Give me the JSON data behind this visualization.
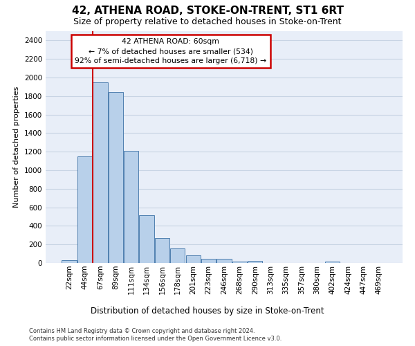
{
  "title": "42, ATHENA ROAD, STOKE-ON-TRENT, ST1 6RT",
  "subtitle": "Size of property relative to detached houses in Stoke-on-Trent",
  "xlabel_bottom": "Distribution of detached houses by size in Stoke-on-Trent",
  "ylabel": "Number of detached properties",
  "footer_line1": "Contains HM Land Registry data © Crown copyright and database right 2024.",
  "footer_line2": "Contains public sector information licensed under the Open Government Licence v3.0.",
  "bin_labels": [
    "22sqm",
    "44sqm",
    "67sqm",
    "89sqm",
    "111sqm",
    "134sqm",
    "156sqm",
    "178sqm",
    "201sqm",
    "223sqm",
    "246sqm",
    "268sqm",
    "290sqm",
    "313sqm",
    "335sqm",
    "357sqm",
    "380sqm",
    "402sqm",
    "424sqm",
    "447sqm",
    "469sqm"
  ],
  "bar_values": [
    30,
    1150,
    1950,
    1840,
    1210,
    515,
    265,
    155,
    80,
    48,
    42,
    18,
    20,
    0,
    0,
    0,
    0,
    18,
    0,
    0,
    0
  ],
  "bar_color": "#b8d0ea",
  "bar_edge_color": "#5080b0",
  "property_line_index": 1.5,
  "annotation_text": "42 ATHENA ROAD: 60sqm\n← 7% of detached houses are smaller (534)\n92% of semi-detached houses are larger (6,718) →",
  "annotation_box_color": "#ffffff",
  "annotation_box_edge_color": "#cc0000",
  "vline_color": "#cc0000",
  "ylim": [
    0,
    2500
  ],
  "yticks": [
    0,
    200,
    400,
    600,
    800,
    1000,
    1200,
    1400,
    1600,
    1800,
    2000,
    2200,
    2400
  ],
  "grid_color": "#c8d4e4",
  "axes_background": "#e8eef8",
  "fig_background": "#ffffff",
  "title_fontsize": 11,
  "subtitle_fontsize": 9,
  "ylabel_fontsize": 8,
  "xlabel_fontsize": 8.5,
  "tick_fontsize": 7.5,
  "footer_fontsize": 6,
  "annot_fontsize": 7.8
}
